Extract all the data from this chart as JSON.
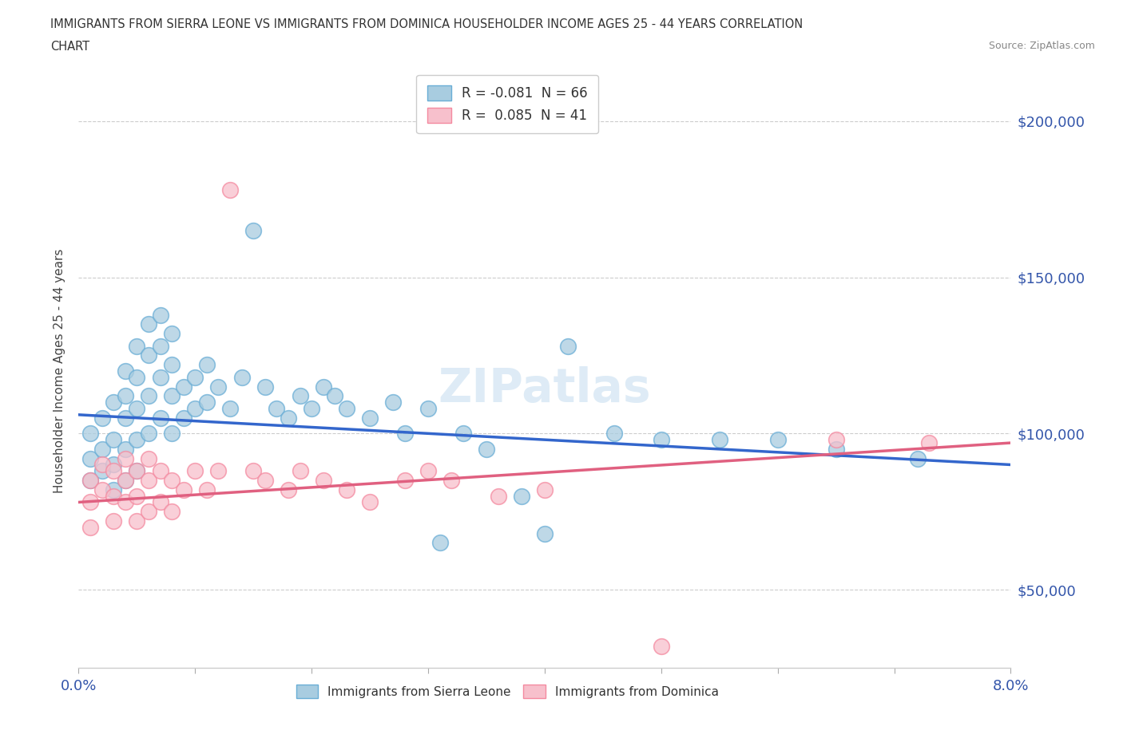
{
  "title_line1": "IMMIGRANTS FROM SIERRA LEONE VS IMMIGRANTS FROM DOMINICA HOUSEHOLDER INCOME AGES 25 - 44 YEARS CORRELATION",
  "title_line2": "CHART",
  "source": "Source: ZipAtlas.com",
  "ylabel": "Householder Income Ages 25 - 44 years",
  "xlim": [
    0.0,
    0.08
  ],
  "ylim": [
    25000,
    215000
  ],
  "xticks": [
    0.0,
    0.01,
    0.02,
    0.03,
    0.04,
    0.05,
    0.06,
    0.07,
    0.08
  ],
  "xticklabels": [
    "0.0%",
    "",
    "",
    "",
    "",
    "",
    "",
    "",
    "8.0%"
  ],
  "yticks": [
    50000,
    100000,
    150000,
    200000
  ],
  "yticklabels": [
    "$50,000",
    "$100,000",
    "$150,000",
    "$200,000"
  ],
  "sierra_leone_color": "#a8cce0",
  "sierra_leone_edge": "#6aaed6",
  "dominica_color": "#f7c0cc",
  "dominica_edge": "#f48aa0",
  "sierra_leone_line_color": "#3366cc",
  "dominica_line_color": "#e06080",
  "legend_label_sl": "R = -0.081  N = 66",
  "legend_label_dom": "R =  0.085  N = 41",
  "watermark": "ZIPatlas",
  "sl_line_x0": 0.0,
  "sl_line_y0": 106000,
  "sl_line_x1": 0.08,
  "sl_line_y1": 90000,
  "dom_line_x0": 0.0,
  "dom_line_y0": 78000,
  "dom_line_x1": 0.08,
  "dom_line_y1": 97000,
  "sierra_leone_x": [
    0.001,
    0.001,
    0.001,
    0.002,
    0.002,
    0.002,
    0.003,
    0.003,
    0.003,
    0.003,
    0.004,
    0.004,
    0.004,
    0.004,
    0.004,
    0.005,
    0.005,
    0.005,
    0.005,
    0.005,
    0.006,
    0.006,
    0.006,
    0.006,
    0.007,
    0.007,
    0.007,
    0.007,
    0.008,
    0.008,
    0.008,
    0.008,
    0.009,
    0.009,
    0.01,
    0.01,
    0.011,
    0.011,
    0.012,
    0.013,
    0.014,
    0.015,
    0.016,
    0.017,
    0.018,
    0.019,
    0.02,
    0.021,
    0.022,
    0.023,
    0.025,
    0.027,
    0.028,
    0.03,
    0.031,
    0.033,
    0.035,
    0.038,
    0.04,
    0.042,
    0.046,
    0.05,
    0.055,
    0.06,
    0.065,
    0.072
  ],
  "sierra_leone_y": [
    100000,
    92000,
    85000,
    105000,
    95000,
    88000,
    110000,
    98000,
    90000,
    82000,
    120000,
    112000,
    105000,
    95000,
    85000,
    128000,
    118000,
    108000,
    98000,
    88000,
    135000,
    125000,
    112000,
    100000,
    138000,
    128000,
    118000,
    105000,
    132000,
    122000,
    112000,
    100000,
    115000,
    105000,
    118000,
    108000,
    122000,
    110000,
    115000,
    108000,
    118000,
    165000,
    115000,
    108000,
    105000,
    112000,
    108000,
    115000,
    112000,
    108000,
    105000,
    110000,
    100000,
    108000,
    65000,
    100000,
    95000,
    80000,
    68000,
    128000,
    100000,
    98000,
    98000,
    98000,
    95000,
    92000
  ],
  "dominica_x": [
    0.001,
    0.001,
    0.001,
    0.002,
    0.002,
    0.003,
    0.003,
    0.003,
    0.004,
    0.004,
    0.004,
    0.005,
    0.005,
    0.005,
    0.006,
    0.006,
    0.006,
    0.007,
    0.007,
    0.008,
    0.008,
    0.009,
    0.01,
    0.011,
    0.012,
    0.013,
    0.015,
    0.016,
    0.018,
    0.019,
    0.021,
    0.023,
    0.025,
    0.028,
    0.03,
    0.032,
    0.036,
    0.04,
    0.05,
    0.065,
    0.073
  ],
  "dominica_y": [
    85000,
    78000,
    70000,
    90000,
    82000,
    88000,
    80000,
    72000,
    92000,
    85000,
    78000,
    88000,
    80000,
    72000,
    92000,
    85000,
    75000,
    88000,
    78000,
    85000,
    75000,
    82000,
    88000,
    82000,
    88000,
    178000,
    88000,
    85000,
    82000,
    88000,
    85000,
    82000,
    78000,
    85000,
    88000,
    85000,
    80000,
    82000,
    32000,
    98000,
    97000
  ]
}
